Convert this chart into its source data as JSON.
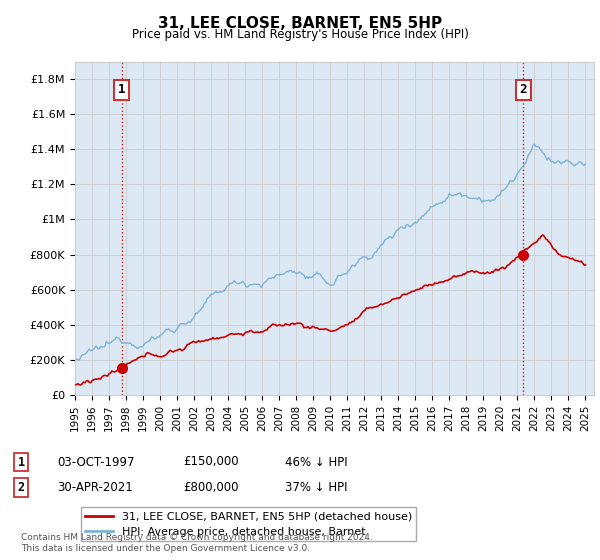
{
  "title": "31, LEE CLOSE, BARNET, EN5 5HP",
  "subtitle": "Price paid vs. HM Land Registry's House Price Index (HPI)",
  "ylabel_ticks": [
    "£0",
    "£200K",
    "£400K",
    "£600K",
    "£800K",
    "£1M",
    "£1.2M",
    "£1.4M",
    "£1.6M",
    "£1.8M"
  ],
  "ylabel_values": [
    0,
    200000,
    400000,
    600000,
    800000,
    1000000,
    1200000,
    1400000,
    1600000,
    1800000
  ],
  "ylim": [
    0,
    1900000
  ],
  "xlim_start": 1995.0,
  "xlim_end": 2025.5,
  "sale1_year": 1997.75,
  "sale1_price": 150000,
  "sale2_year": 2021.33,
  "sale2_price": 800000,
  "red_line_color": "#cc0000",
  "blue_line_color": "#7fb3d3",
  "annotation_box_color": "#cc3333",
  "grid_color": "#cccccc",
  "background_color": "#ffffff",
  "chart_bg_color": "#dce9f5",
  "legend_label1": "31, LEE CLOSE, BARNET, EN5 5HP (detached house)",
  "legend_label2": "HPI: Average price, detached house, Barnet",
  "table_row1": [
    "1",
    "03-OCT-1997",
    "£150,000",
    "46% ↓ HPI"
  ],
  "table_row2": [
    "2",
    "30-APR-2021",
    "£800,000",
    "37% ↓ HPI"
  ],
  "footer": "Contains HM Land Registry data © Crown copyright and database right 2024.\nThis data is licensed under the Open Government Licence v3.0.",
  "xtick_years": [
    1995,
    1996,
    1997,
    1998,
    1999,
    2000,
    2001,
    2002,
    2003,
    2004,
    2005,
    2006,
    2007,
    2008,
    2009,
    2010,
    2011,
    2012,
    2013,
    2014,
    2015,
    2016,
    2017,
    2018,
    2019,
    2020,
    2021,
    2022,
    2023,
    2024,
    2025
  ]
}
